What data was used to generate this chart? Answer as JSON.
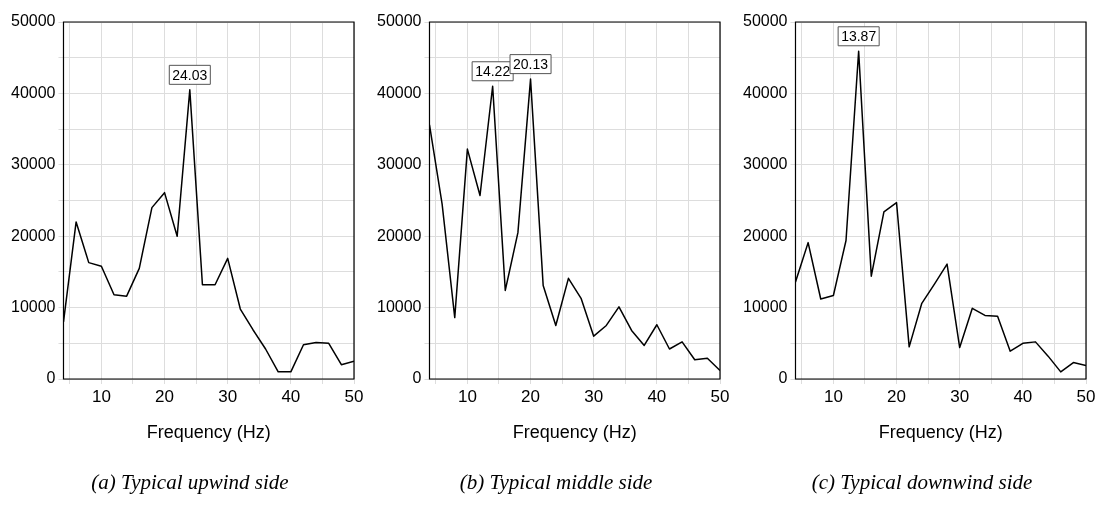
{
  "chart_data": [
    {
      "type": "line",
      "title": "(a) Typical upwind side",
      "xlabel": "Frequency (Hz)",
      "x": [
        4,
        6,
        8,
        10,
        12,
        14,
        16,
        18,
        20,
        22,
        24,
        26,
        28,
        30,
        32,
        34,
        36,
        38,
        40,
        42,
        44,
        46,
        48,
        50
      ],
      "series": [
        {
          "color": "#000000",
          "values": [
            8000,
            22000,
            16300,
            15800,
            11800,
            11600,
            15500,
            24000,
            26100,
            20000,
            40500,
            13200,
            13200,
            16900,
            9800,
            6900,
            4200,
            1000,
            1000,
            4800,
            5100,
            5000,
            2000,
            2500
          ]
        }
      ],
      "xlim": [
        4,
        50
      ],
      "xticks": [
        {
          "value": 5,
          "label": null
        },
        10,
        {
          "value": 15,
          "label": null
        },
        20,
        {
          "value": 25,
          "label": null
        },
        30,
        {
          "value": 35,
          "label": null
        },
        40,
        {
          "value": 45,
          "label": null
        },
        50
      ],
      "ylim": [
        0,
        50000
      ],
      "yticks": [
        0,
        {
          "value": 5000,
          "label": null
        },
        10000,
        {
          "value": 15000,
          "label": null
        },
        20000,
        {
          "value": 25000,
          "label": null
        },
        30000,
        {
          "value": 35000,
          "label": null
        },
        40000,
        {
          "value": 45000,
          "label": null
        },
        50000
      ],
      "grid": true,
      "marker": "none",
      "line_style": "solid",
      "annotations": [
        {
          "text": "24.03",
          "x": 24,
          "y": 40500
        }
      ]
    },
    {
      "type": "line",
      "title": "(b) Typical middle side",
      "xlabel": "Frequency (Hz)",
      "x": [
        4,
        6,
        8,
        10,
        12,
        14,
        16,
        18,
        20,
        22,
        24,
        26,
        28,
        30,
        32,
        34,
        36,
        38,
        40,
        42,
        44,
        46,
        48,
        50
      ],
      "series": [
        {
          "color": "#000000",
          "values": [
            35600,
            24500,
            8600,
            32200,
            25700,
            41000,
            12400,
            20500,
            42000,
            13100,
            7500,
            14100,
            11300,
            6000,
            7500,
            10100,
            6800,
            4700,
            7600,
            4200,
            5200,
            2700,
            2900,
            1200
          ]
        }
      ],
      "xlim": [
        4,
        50
      ],
      "xticks": [
        {
          "value": 5,
          "label": null
        },
        10,
        {
          "value": 15,
          "label": null
        },
        20,
        {
          "value": 25,
          "label": null
        },
        30,
        {
          "value": 35,
          "label": null
        },
        40,
        {
          "value": 45,
          "label": null
        },
        50
      ],
      "ylim": [
        0,
        50000
      ],
      "yticks": [
        0,
        {
          "value": 5000,
          "label": null
        },
        10000,
        {
          "value": 15000,
          "label": null
        },
        20000,
        {
          "value": 25000,
          "label": null
        },
        30000,
        {
          "value": 35000,
          "label": null
        },
        40000,
        {
          "value": 45000,
          "label": null
        },
        50000
      ],
      "grid": true,
      "marker": "none",
      "line_style": "solid",
      "annotations": [
        {
          "text": "14.22",
          "x": 14,
          "y": 41000
        },
        {
          "text": "20.13",
          "x": 20,
          "y": 42000
        }
      ]
    },
    {
      "type": "line",
      "title": "(c) Typical downwind side",
      "xlabel": "Frequency (Hz)",
      "x": [
        4,
        6,
        8,
        10,
        12,
        14,
        16,
        18,
        20,
        22,
        24,
        26,
        28,
        30,
        32,
        34,
        36,
        38,
        40,
        42,
        44,
        46,
        48,
        50
      ],
      "series": [
        {
          "color": "#000000",
          "values": [
            13600,
            19100,
            11200,
            11700,
            19400,
            45900,
            14400,
            23400,
            24700,
            4500,
            10600,
            13300,
            16100,
            4400,
            9900,
            8900,
            8800,
            3900,
            5000,
            5200,
            3200,
            1000,
            2300,
            1900
          ]
        }
      ],
      "xlim": [
        4,
        50
      ],
      "xticks": [
        {
          "value": 5,
          "label": null
        },
        10,
        {
          "value": 15,
          "label": null
        },
        20,
        {
          "value": 25,
          "label": null
        },
        30,
        {
          "value": 35,
          "label": null
        },
        40,
        {
          "value": 45,
          "label": null
        },
        50
      ],
      "ylim": [
        0,
        50000
      ],
      "yticks": [
        0,
        {
          "value": 5000,
          "label": null
        },
        10000,
        {
          "value": 15000,
          "label": null
        },
        20000,
        {
          "value": 25000,
          "label": null
        },
        30000,
        {
          "value": 35000,
          "label": null
        },
        40000,
        {
          "value": 45000,
          "label": null
        },
        50000
      ],
      "grid": true,
      "marker": "none",
      "line_style": "solid",
      "annotations": [
        {
          "text": "13.87",
          "x": 14,
          "y": 45900
        }
      ]
    }
  ]
}
